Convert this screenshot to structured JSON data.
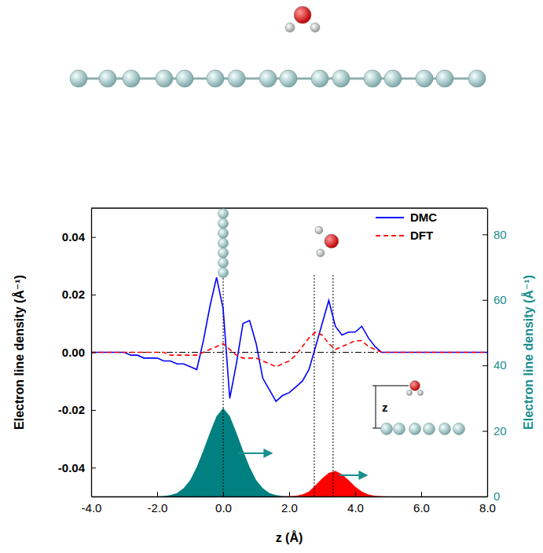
{
  "chart_data": {
    "type": "line",
    "x_label": "z (Å)",
    "y_label": "Electron line density (Å⁻¹)",
    "y2_label": "Electron line density (Å⁻¹)",
    "x": [
      -4,
      -3.8,
      -3.6,
      -3.4,
      -3.2,
      -3,
      -2.8,
      -2.6,
      -2.4,
      -2.2,
      -2,
      -1.8,
      -1.6,
      -1.4,
      -1.2,
      -1,
      -0.8,
      -0.6,
      -0.4,
      -0.2,
      0,
      0.2,
      0.4,
      0.6,
      0.8,
      1,
      1.2,
      1.4,
      1.6,
      1.8,
      2,
      2.2,
      2.4,
      2.6,
      2.8,
      3,
      3.2,
      3.4,
      3.6,
      3.8,
      4,
      4.2,
      4.4,
      4.6,
      4.8,
      5,
      5.2,
      5.4,
      5.6,
      5.8,
      6,
      6.2,
      6.4,
      6.6,
      6.8,
      7,
      7.2,
      7.4,
      7.6,
      7.8,
      8
    ],
    "series": [
      {
        "name": "DMC",
        "color": "#0000ff",
        "line_style": "solid",
        "values": [
          0,
          0,
          0,
          0,
          0,
          0,
          -0.001,
          -0.001,
          -0.002,
          -0.002,
          -0.002,
          -0.003,
          -0.003,
          -0.004,
          -0.004,
          -0.005,
          -0.006,
          0.004,
          0.016,
          0.026,
          0.015,
          -0.016,
          -0.004,
          0.01,
          0.011,
          0.003,
          -0.009,
          -0.013,
          -0.017,
          -0.015,
          -0.014,
          -0.012,
          -0.01,
          -0.006,
          0.002,
          0.01,
          0.018,
          0.009,
          0.006,
          0.007,
          0.007,
          0.009,
          0.005,
          0.002,
          0,
          0,
          0,
          0,
          0,
          0,
          0,
          0,
          0,
          0,
          0,
          0,
          0,
          0,
          0,
          0,
          0
        ]
      },
      {
        "name": "DFT",
        "color": "#ff0000",
        "line_style": "dashed",
        "values": [
          0,
          0,
          0,
          0,
          0,
          0,
          0,
          0,
          0,
          0,
          0,
          0,
          -0.001,
          -0.001,
          -0.001,
          -0.001,
          -0.001,
          0,
          0.001,
          0.002,
          0.003,
          0.001,
          -0.001,
          -0.002,
          -0.002,
          -0.002,
          -0.003,
          -0.004,
          -0.005,
          -0.004,
          -0.003,
          -0.001,
          0.002,
          0.005,
          0.007,
          0.006,
          0.003,
          0.001,
          0.002,
          0.003,
          0.004,
          0.004,
          0.002,
          0.001,
          0,
          0,
          0,
          0,
          0,
          0,
          0,
          0,
          0,
          0,
          0,
          0,
          0,
          0,
          0,
          0,
          0
        ]
      },
      {
        "type": "area",
        "axis": "y2",
        "color": "#008080",
        "values": [
          0,
          0,
          0,
          0,
          0,
          0,
          0,
          0,
          0,
          0,
          0.03,
          0.1,
          0.4,
          1,
          2.5,
          5,
          9,
          14,
          19.5,
          24.5,
          27,
          24.5,
          19.5,
          14,
          9,
          5,
          2.5,
          1,
          0.4,
          0.1,
          0.03,
          0,
          0,
          0,
          0,
          0,
          0,
          0,
          0,
          0,
          0,
          0,
          0,
          0,
          0,
          0,
          0,
          0,
          0,
          0,
          0,
          0,
          0,
          0,
          0,
          0,
          0,
          0,
          0,
          0,
          0
        ]
      },
      {
        "type": "area",
        "axis": "y2",
        "color": "#ff0000",
        "values": [
          0,
          0,
          0,
          0,
          0,
          0,
          0,
          0,
          0,
          0,
          0,
          0,
          0,
          0,
          0,
          0,
          0,
          0,
          0,
          0,
          0,
          0,
          0,
          0,
          0,
          0,
          0,
          0,
          0,
          0,
          0.05,
          0.2,
          0.6,
          1.5,
          3.5,
          5.5,
          7.2,
          7.8,
          6.8,
          5,
          3,
          1.5,
          0.6,
          0.2,
          0.05,
          0,
          0,
          0,
          0,
          0,
          0,
          0,
          0,
          0,
          0,
          0,
          0,
          0,
          0,
          0,
          0
        ]
      }
    ],
    "xlim": [
      -4,
      8
    ],
    "xticks": [
      {
        "value": -4,
        "label": "-4.0"
      },
      {
        "value": -2,
        "label": "-2.0"
      },
      {
        "value": 0,
        "label": "0.0"
      },
      {
        "value": 2,
        "label": "2.0"
      },
      {
        "value": 4,
        "label": "4.0"
      },
      {
        "value": 6,
        "label": "6.0"
      },
      {
        "value": 8,
        "label": "8.0"
      }
    ],
    "ylim": [
      -0.05,
      0.05
    ],
    "yticks": [
      -0.04,
      -0.02,
      {
        "value": 0,
        "label": "0.00"
      },
      0.02,
      0.04
    ],
    "y2lim": [
      0,
      88
    ],
    "y2ticks": [
      0,
      20,
      40,
      60,
      80
    ],
    "vlines": [
      0,
      2.76,
      3.33
    ],
    "hlines": [
      0
    ],
    "inset_label": "z",
    "legend": "upper right"
  }
}
